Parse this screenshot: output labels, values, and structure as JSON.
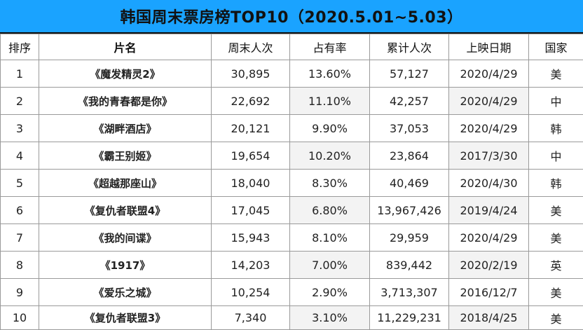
{
  "title": "韩国周末票房榜TOP10（2020.5.01~5.03）",
  "headers": [
    "排序",
    "片名",
    "周末人次",
    "占有率",
    "累计人次",
    "上映日期",
    "国家"
  ],
  "rows": [
    {
      "rank": "1",
      "film": "《魔发精灵2》",
      "weekend": "30,895",
      "share": "13.60%",
      "total": "57,127",
      "date": "2020/4/29",
      "country": "美"
    },
    {
      "rank": "2",
      "film": "《我的青春都是你》",
      "weekend": "22,692",
      "share": "11.10%",
      "total": "42,257",
      "date": "2020/4/29",
      "country": "中"
    },
    {
      "rank": "3",
      "film": "《湖畔酒店》",
      "weekend": "20,121",
      "share": "9.90%",
      "total": "37,053",
      "date": "2020/4/29",
      "country": "韩"
    },
    {
      "rank": "4",
      "film": "《霸王别姬》",
      "weekend": "19,654",
      "share": "10.20%",
      "total": "23,864",
      "date": "2017/3/30",
      "country": "中"
    },
    {
      "rank": "5",
      "film": "《超越那座山》",
      "weekend": "18,040",
      "share": "8.30%",
      "total": "40,469",
      "date": "2020/4/30",
      "country": "韩"
    },
    {
      "rank": "6",
      "film": "《复仇者联盟4》",
      "weekend": "17,045",
      "share": "6.80%",
      "total": "13,967,426",
      "date": "2019/4/24",
      "country": "美"
    },
    {
      "rank": "7",
      "film": "《我的间谍》",
      "weekend": "15,943",
      "share": "8.10%",
      "total": "29,959",
      "date": "2020/4/29",
      "country": "美"
    },
    {
      "rank": "8",
      "film": "《1917》",
      "weekend": "14,203",
      "share": "7.00%",
      "total": "839,442",
      "date": "2020/2/19",
      "country": "英"
    },
    {
      "rank": "9",
      "film": "《爱乐之城》",
      "weekend": "10,254",
      "share": "2.90%",
      "total": "3,713,307",
      "date": "2016/12/7",
      "country": "美"
    },
    {
      "rank": "10",
      "film": "《复仇者联盟3》",
      "weekend": "7,340",
      "share": "3.10%",
      "total": "11,229,231",
      "date": "2018/4/25",
      "country": "美"
    }
  ],
  "colors": {
    "title_background": "#1aa3ff",
    "grid_line": "#9a9a9a",
    "shaded_cell": "#f3f3f3"
  }
}
